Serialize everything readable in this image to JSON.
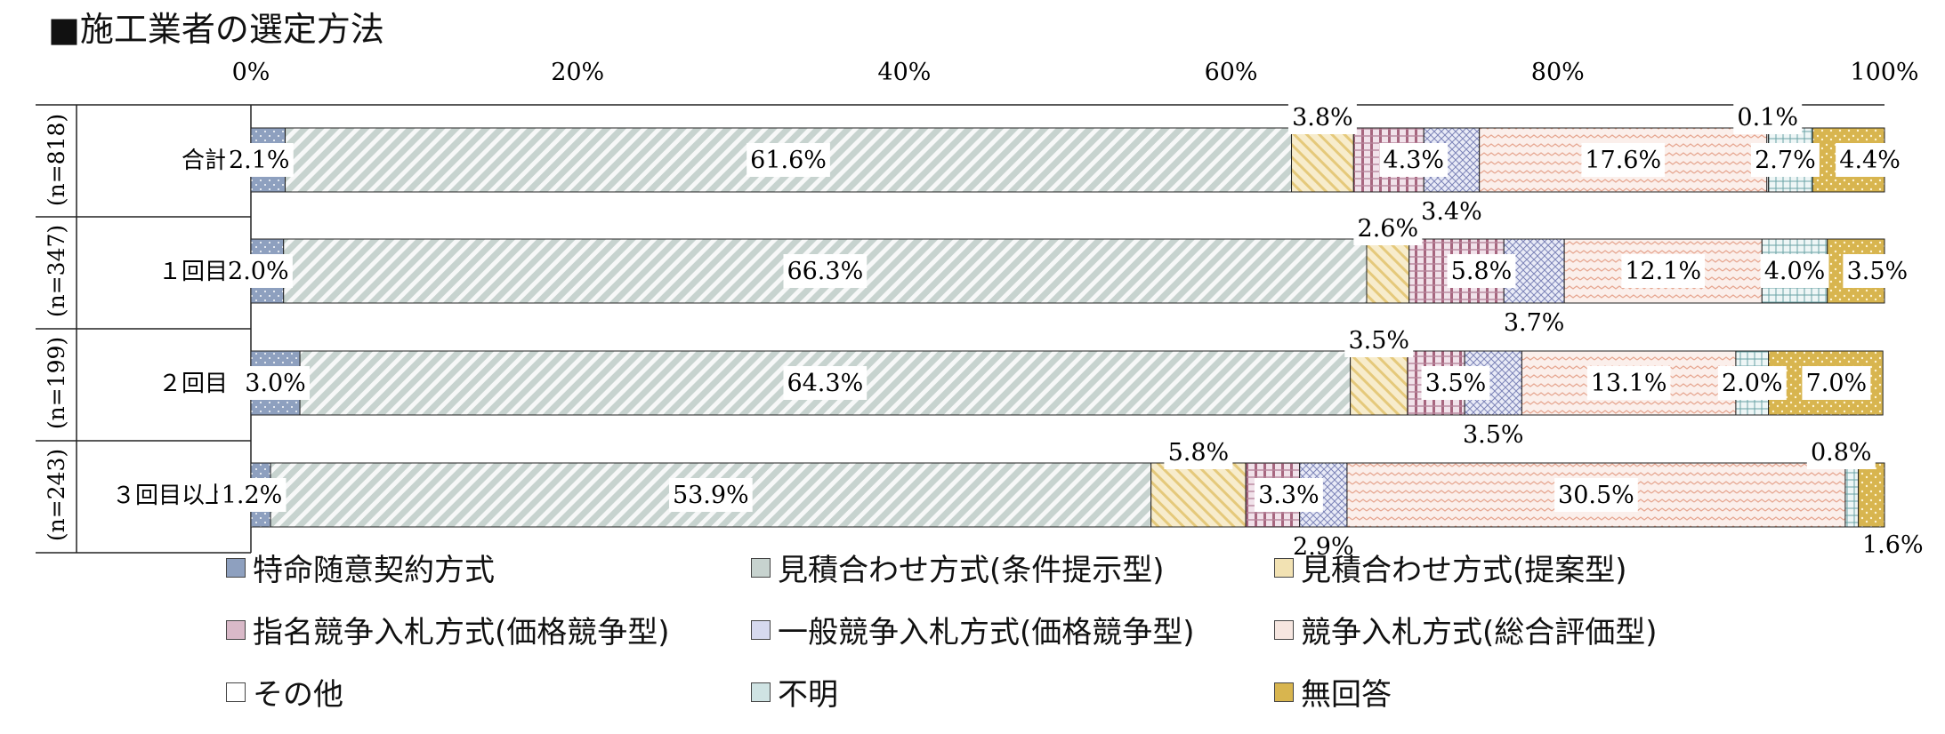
{
  "title": "■施工業者の選定方法",
  "chart_data": {
    "type": "bar",
    "orientation": "horizontal",
    "stacked": true,
    "xlim": [
      0,
      100
    ],
    "x_ticks": [
      "0%",
      "20%",
      "40%",
      "60%",
      "80%",
      "100%"
    ],
    "categories": [
      {
        "label": "合計",
        "n": "(n=818)"
      },
      {
        "label": "１回目",
        "n": "(n=347)"
      },
      {
        "label": "２回目",
        "n": "(n=199)"
      },
      {
        "label": "３回目以上",
        "n": "(n=243)"
      }
    ],
    "series": [
      {
        "name": "特命随意契約方式",
        "color": "#8ea0bf",
        "values": [
          2.1,
          2.0,
          3.0,
          1.2
        ],
        "labels": [
          "2.1%",
          "2.0%",
          "3.0%",
          "1.2%"
        ]
      },
      {
        "name": "見積合わせ方式(条件提示型)",
        "color": "#c7d3cf",
        "values": [
          61.6,
          66.3,
          64.3,
          53.9
        ],
        "labels": [
          "61.6%",
          "66.3%",
          "64.3%",
          "53.9%"
        ]
      },
      {
        "name": "見積合わせ方式(提案型)",
        "color": "#f2e2b3",
        "values": [
          3.8,
          2.6,
          3.5,
          5.8
        ],
        "labels": [
          "3.8%",
          "2.6%",
          "3.5%",
          "5.8%"
        ]
      },
      {
        "name": "指名競争入札方式(価格競争型)",
        "color": "#d9b9c8",
        "values": [
          4.3,
          5.8,
          3.5,
          3.3
        ],
        "labels": [
          "4.3%",
          "5.8%",
          "3.5%",
          "3.3%"
        ]
      },
      {
        "name": "一般競争入札方式(価格競争型)",
        "color": "#d6d9ee",
        "values": [
          3.4,
          3.7,
          3.5,
          2.9
        ],
        "labels": [
          "3.4%",
          "3.7%",
          "3.5%",
          "2.9%"
        ]
      },
      {
        "name": "競争入札方式(総合評価型)",
        "color": "#f6e6e0",
        "values": [
          17.6,
          12.1,
          13.1,
          30.5
        ],
        "labels": [
          "17.6%",
          "12.1%",
          "13.1%",
          "30.5%"
        ]
      },
      {
        "name": "その他",
        "color": "#ffffff",
        "values": [
          0.1,
          0.0,
          0.0,
          0.0
        ],
        "labels": [
          "0.1%",
          "",
          "",
          ""
        ]
      },
      {
        "name": "不明",
        "color": "#cfe3e3",
        "values": [
          2.7,
          4.0,
          2.0,
          0.8
        ],
        "labels": [
          "2.7%",
          "4.0%",
          "2.0%",
          "0.8%"
        ]
      },
      {
        "name": "無回答",
        "color": "#d8b54f",
        "values": [
          4.4,
          3.5,
          7.0,
          1.6
        ],
        "labels": [
          "4.4%",
          "3.5%",
          "7.0%",
          "1.6%"
        ]
      }
    ],
    "grid": false,
    "legend_position": "bottom"
  }
}
